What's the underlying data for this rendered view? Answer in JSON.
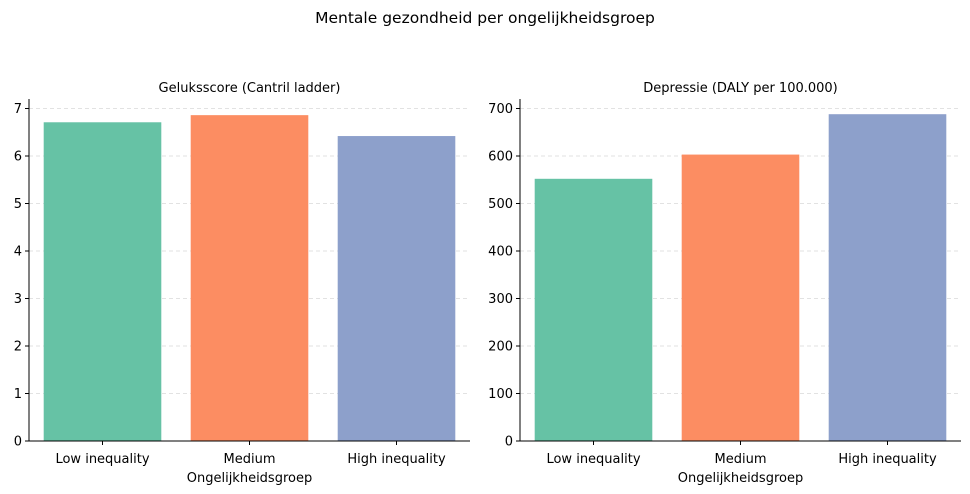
{
  "figure": {
    "title": "Mentale gezondheid per ongelijkheidsgroep"
  },
  "chart_data": [
    {
      "type": "bar",
      "title": "Geluksscore (Cantril ladder)",
      "xlabel": "Ongelijkheidsgroep",
      "ylabel": "",
      "categories": [
        "Low inequality",
        "Medium",
        "High inequality"
      ],
      "values": [
        6.71,
        6.86,
        6.42
      ],
      "ylim": [
        0,
        7.2
      ],
      "yticks": [
        0,
        1,
        2,
        3,
        4,
        5,
        6,
        7
      ],
      "colors": [
        "#66c2a5",
        "#fc8d62",
        "#8da0cb"
      ],
      "grid": "y-dashed",
      "legend": "none"
    },
    {
      "type": "bar",
      "title": "Depressie (DALY per 100.000)",
      "xlabel": "Ongelijkheidsgroep",
      "ylabel": "",
      "categories": [
        "Low inequality",
        "Medium",
        "High inequality"
      ],
      "values": [
        552,
        603,
        688
      ],
      "ylim": [
        0,
        720
      ],
      "yticks": [
        0,
        100,
        200,
        300,
        400,
        500,
        600,
        700
      ],
      "colors": [
        "#66c2a5",
        "#fc8d62",
        "#8da0cb"
      ],
      "grid": "y-dashed",
      "legend": "none"
    }
  ]
}
